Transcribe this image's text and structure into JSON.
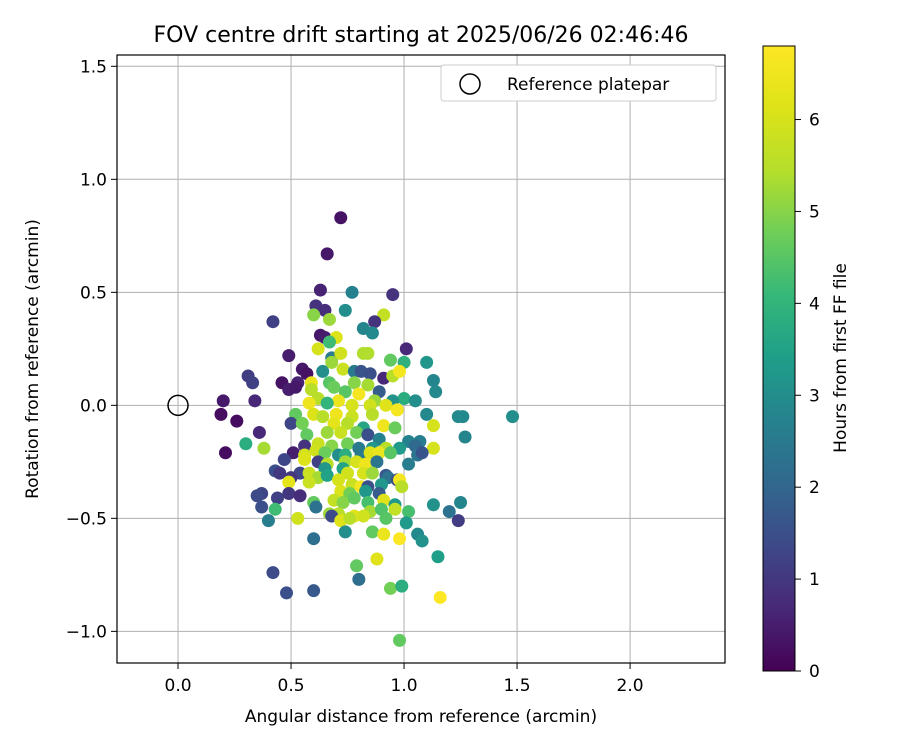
{
  "chart_data": {
    "type": "scatter",
    "title": "FOV centre drift starting at 2025/06/26 02:46:46",
    "xlabel": "Angular distance from reference (arcmin)",
    "ylabel": "Rotation from reference (arcmin)",
    "xlim": [
      -0.27,
      2.42
    ],
    "ylim": [
      -1.14,
      1.55
    ],
    "xticks": [
      0.0,
      0.5,
      1.0,
      1.5,
      2.0
    ],
    "xtick_labels": [
      "0.0",
      "0.5",
      "1.0",
      "1.5",
      "2.0"
    ],
    "yticks": [
      -1.0,
      -0.5,
      0.0,
      0.5,
      1.0,
      1.5
    ],
    "ytick_labels": [
      "−1.0",
      "−0.5",
      "0.0",
      "0.5",
      "1.0",
      "1.5"
    ],
    "grid": true,
    "legend": {
      "position": "top-right",
      "entries": [
        "Reference platepar"
      ]
    },
    "reference_point": {
      "x": 0.0,
      "y": 0.0
    },
    "colorbar": {
      "label": "Hours from first FF file",
      "range": [
        0,
        6.8
      ],
      "ticks": [
        0,
        1,
        2,
        3,
        4,
        5,
        6
      ],
      "tick_labels": [
        "0",
        "1",
        "2",
        "3",
        "4",
        "5",
        "6"
      ],
      "colormap": "viridis"
    },
    "points": [
      [
        0.72,
        0.83,
        0.3
      ],
      [
        0.66,
        0.67,
        0.4
      ],
      [
        0.63,
        0.51,
        0.6
      ],
      [
        0.77,
        0.5,
        2.7
      ],
      [
        0.95,
        0.49,
        0.9
      ],
      [
        0.61,
        0.44,
        0.9
      ],
      [
        0.65,
        0.42,
        0.8
      ],
      [
        0.74,
        0.42,
        3.0
      ],
      [
        0.6,
        0.4,
        5.0
      ],
      [
        0.67,
        0.38,
        5.2
      ],
      [
        0.91,
        0.4,
        5.7
      ],
      [
        0.42,
        0.37,
        1.2
      ],
      [
        0.87,
        0.37,
        0.9
      ],
      [
        0.82,
        0.34,
        2.8
      ],
      [
        0.63,
        0.31,
        0.4
      ],
      [
        0.65,
        0.3,
        0.5
      ],
      [
        0.7,
        0.3,
        6.1
      ],
      [
        0.86,
        0.32,
        2.9
      ],
      [
        0.67,
        0.28,
        4.2
      ],
      [
        0.62,
        0.25,
        6.0
      ],
      [
        1.01,
        0.25,
        0.7
      ],
      [
        0.68,
        0.21,
        2.6
      ],
      [
        0.68,
        0.19,
        5.2
      ],
      [
        0.72,
        0.23,
        5.9
      ],
      [
        0.82,
        0.23,
        5.4
      ],
      [
        0.84,
        0.23,
        5.4
      ],
      [
        0.49,
        0.22,
        0.5
      ],
      [
        0.94,
        0.2,
        4.6
      ],
      [
        1.0,
        0.19,
        3.9
      ],
      [
        1.1,
        0.19,
        3.2
      ],
      [
        0.55,
        0.16,
        0.4
      ],
      [
        0.57,
        0.14,
        0.3
      ],
      [
        0.64,
        0.15,
        3.0
      ],
      [
        0.73,
        0.16,
        5.8
      ],
      [
        0.78,
        0.15,
        2.5
      ],
      [
        0.81,
        0.15,
        1.6
      ],
      [
        0.85,
        0.14,
        1.5
      ],
      [
        0.91,
        0.12,
        0.7
      ],
      [
        0.95,
        0.13,
        5.5
      ],
      [
        0.98,
        0.15,
        6.6
      ],
      [
        1.13,
        0.11,
        2.8
      ],
      [
        0.31,
        0.13,
        1.1
      ],
      [
        0.33,
        0.1,
        1.2
      ],
      [
        0.46,
        0.1,
        0.3
      ],
      [
        0.53,
        0.1,
        0.6
      ],
      [
        0.59,
        0.1,
        6.4
      ],
      [
        0.59,
        0.07,
        5.5
      ],
      [
        0.67,
        0.1,
        4.5
      ],
      [
        0.69,
        0.08,
        4.7
      ],
      [
        0.78,
        0.1,
        5.0
      ],
      [
        0.84,
        0.09,
        5.3
      ],
      [
        0.89,
        0.06,
        1.8
      ],
      [
        1.0,
        0.03,
        3.8
      ],
      [
        1.14,
        0.06,
        2.9
      ],
      [
        0.49,
        0.07,
        0.5
      ],
      [
        0.52,
        0.08,
        0.4
      ],
      [
        0.74,
        0.06,
        4.5
      ],
      [
        0.8,
        0.05,
        6.6
      ],
      [
        0.62,
        0.03,
        5.5
      ],
      [
        0.71,
        0.02,
        6.4
      ],
      [
        0.87,
        0.02,
        5.2
      ],
      [
        0.95,
        0.02,
        3.1
      ],
      [
        1.05,
        0.02,
        3.0
      ],
      [
        0.2,
        0.02,
        0.4
      ],
      [
        0.34,
        0.02,
        0.7
      ],
      [
        0.58,
        0.01,
        6.5
      ],
      [
        0.66,
        0.01,
        4.0
      ],
      [
        0.77,
        0.0,
        6.0
      ],
      [
        0.85,
        0.0,
        5.9
      ],
      [
        0.92,
        0.0,
        6.2
      ],
      [
        0.97,
        -0.02,
        6.6
      ],
      [
        0.19,
        -0.04,
        0.2
      ],
      [
        0.52,
        -0.04,
        4.6
      ],
      [
        0.6,
        -0.04,
        6.1
      ],
      [
        0.64,
        -0.05,
        5.5
      ],
      [
        0.7,
        -0.04,
        6.5
      ],
      [
        0.77,
        -0.05,
        5.8
      ],
      [
        0.86,
        -0.04,
        5.5
      ],
      [
        1.1,
        -0.04,
        2.9
      ],
      [
        1.24,
        -0.05,
        2.9
      ],
      [
        1.26,
        -0.05,
        2.9
      ],
      [
        1.48,
        -0.05,
        3.0
      ],
      [
        0.26,
        -0.07,
        0.2
      ],
      [
        0.5,
        -0.08,
        1.3
      ],
      [
        0.55,
        -0.08,
        4.8
      ],
      [
        0.69,
        -0.08,
        6.3
      ],
      [
        0.75,
        -0.08,
        5.5
      ],
      [
        0.82,
        -0.1,
        3.6
      ],
      [
        0.91,
        -0.09,
        6.5
      ],
      [
        0.96,
        -0.1,
        4.7
      ],
      [
        1.13,
        -0.09,
        6.0
      ],
      [
        0.36,
        -0.12,
        0.7
      ],
      [
        0.57,
        -0.13,
        4.6
      ],
      [
        0.66,
        -0.12,
        5.2
      ],
      [
        0.72,
        -0.12,
        5.8
      ],
      [
        0.79,
        -0.12,
        4.8
      ],
      [
        0.84,
        -0.13,
        1.5
      ],
      [
        0.89,
        -0.15,
        2.7
      ],
      [
        1.02,
        -0.16,
        2.7
      ],
      [
        1.07,
        -0.16,
        2.6
      ],
      [
        1.27,
        -0.14,
        2.8
      ],
      [
        0.3,
        -0.17,
        3.8
      ],
      [
        0.38,
        -0.19,
        5.3
      ],
      [
        0.56,
        -0.18,
        0.9
      ],
      [
        0.62,
        -0.17,
        5.8
      ],
      [
        0.68,
        -0.18,
        5.0
      ],
      [
        0.75,
        -0.17,
        4.8
      ],
      [
        0.8,
        -0.19,
        2.5
      ],
      [
        0.86,
        -0.19,
        3.2
      ],
      [
        0.92,
        -0.19,
        5.5
      ],
      [
        0.98,
        -0.19,
        3.3
      ],
      [
        1.05,
        -0.18,
        2.1
      ],
      [
        1.13,
        -0.19,
        6.0
      ],
      [
        0.21,
        -0.21,
        0.2
      ],
      [
        0.51,
        -0.21,
        0.5
      ],
      [
        0.56,
        -0.22,
        6.0
      ],
      [
        0.61,
        -0.2,
        5.9
      ],
      [
        0.65,
        -0.21,
        4.7
      ],
      [
        0.71,
        -0.22,
        3.0
      ],
      [
        0.74,
        -0.22,
        3.8
      ],
      [
        0.81,
        -0.22,
        2.5
      ],
      [
        0.85,
        -0.21,
        6.2
      ],
      [
        0.89,
        -0.21,
        6.4
      ],
      [
        0.94,
        -0.21,
        4.5
      ],
      [
        1.06,
        -0.22,
        2.4
      ],
      [
        1.08,
        -0.21,
        1.6
      ],
      [
        0.47,
        -0.24,
        1.3
      ],
      [
        0.56,
        -0.24,
        6.1
      ],
      [
        0.62,
        -0.25,
        1.2
      ],
      [
        0.66,
        -0.26,
        5.5
      ],
      [
        0.74,
        -0.25,
        5.3
      ],
      [
        0.79,
        -0.25,
        6.0
      ],
      [
        0.83,
        -0.26,
        6.5
      ],
      [
        0.88,
        -0.25,
        2.4
      ],
      [
        1.02,
        -0.26,
        2.6
      ],
      [
        0.43,
        -0.29,
        1.5
      ],
      [
        0.45,
        -0.3,
        1.0
      ],
      [
        0.54,
        -0.3,
        1.3
      ],
      [
        0.58,
        -0.3,
        5.8
      ],
      [
        0.65,
        -0.28,
        3.2
      ],
      [
        0.73,
        -0.28,
        3.5
      ],
      [
        0.75,
        -0.3,
        5.9
      ],
      [
        0.82,
        -0.3,
        6.0
      ],
      [
        0.86,
        -0.3,
        5.2
      ],
      [
        0.92,
        -0.31,
        1.7
      ],
      [
        0.5,
        -0.32,
        1.0
      ],
      [
        0.62,
        -0.32,
        5.3
      ],
      [
        0.66,
        -0.31,
        3.5
      ],
      [
        0.71,
        -0.33,
        6.0
      ],
      [
        0.93,
        -0.32,
        2.3
      ],
      [
        0.97,
        -0.33,
        1.5
      ],
      [
        0.98,
        -0.33,
        6.6
      ],
      [
        0.49,
        -0.34,
        6.3
      ],
      [
        0.58,
        -0.34,
        5.8
      ],
      [
        0.77,
        -0.35,
        5.8
      ],
      [
        0.81,
        -0.36,
        6.6
      ],
      [
        0.84,
        -0.36,
        1.5
      ],
      [
        0.9,
        -0.35,
        3.2
      ],
      [
        0.37,
        -0.39,
        1.3
      ],
      [
        0.44,
        -0.41,
        1.2
      ],
      [
        0.49,
        -0.39,
        1.0
      ],
      [
        0.54,
        -0.4,
        0.8
      ],
      [
        0.72,
        -0.38,
        6.1
      ],
      [
        0.76,
        -0.39,
        4.8
      ],
      [
        0.83,
        -0.38,
        3.2
      ],
      [
        0.89,
        -0.39,
        1.8
      ],
      [
        0.99,
        -0.36,
        5.5
      ],
      [
        0.35,
        -0.4,
        1.4
      ],
      [
        0.6,
        -0.43,
        4.6
      ],
      [
        0.69,
        -0.42,
        5.7
      ],
      [
        0.73,
        -0.43,
        5.0
      ],
      [
        0.78,
        -0.41,
        4.6
      ],
      [
        0.84,
        -0.43,
        4.3
      ],
      [
        0.91,
        -0.42,
        6.2
      ],
      [
        0.96,
        -0.44,
        3.3
      ],
      [
        1.13,
        -0.44,
        3.1
      ],
      [
        1.25,
        -0.43,
        2.8
      ],
      [
        0.37,
        -0.45,
        1.5
      ],
      [
        0.43,
        -0.46,
        4.2
      ],
      [
        0.61,
        -0.45,
        2.3
      ],
      [
        0.67,
        -0.48,
        5.2
      ],
      [
        0.71,
        -0.48,
        5.5
      ],
      [
        0.78,
        -0.49,
        6.2
      ],
      [
        0.85,
        -0.47,
        5.3
      ],
      [
        0.9,
        -0.46,
        4.4
      ],
      [
        0.96,
        -0.46,
        5.7
      ],
      [
        1.02,
        -0.47,
        4.3
      ],
      [
        1.2,
        -0.47,
        2.3
      ],
      [
        0.4,
        -0.51,
        2.6
      ],
      [
        0.53,
        -0.5,
        5.9
      ],
      [
        0.68,
        -0.49,
        1.4
      ],
      [
        0.72,
        -0.51,
        6.2
      ],
      [
        0.76,
        -0.5,
        5.5
      ],
      [
        0.82,
        -0.49,
        5.9
      ],
      [
        0.92,
        -0.5,
        4.5
      ],
      [
        1.01,
        -0.52,
        3.3
      ],
      [
        1.24,
        -0.51,
        1.1
      ],
      [
        0.74,
        -0.56,
        3.0
      ],
      [
        0.86,
        -0.56,
        4.6
      ],
      [
        0.91,
        -0.57,
        6.4
      ],
      [
        0.98,
        -0.59,
        6.8
      ],
      [
        1.06,
        -0.57,
        2.9
      ],
      [
        1.08,
        -0.6,
        3.1
      ],
      [
        0.6,
        -0.59,
        2.2
      ],
      [
        1.15,
        -0.67,
        3.4
      ],
      [
        0.88,
        -0.68,
        6.2
      ],
      [
        0.79,
        -0.71,
        4.6
      ],
      [
        0.42,
        -0.74,
        1.4
      ],
      [
        0.8,
        -0.77,
        2.2
      ],
      [
        0.94,
        -0.81,
        4.8
      ],
      [
        0.99,
        -0.8,
        3.8
      ],
      [
        0.48,
        -0.83,
        1.5
      ],
      [
        0.6,
        -0.82,
        1.7
      ],
      [
        1.16,
        -0.85,
        6.8
      ],
      [
        0.98,
        -1.04,
        4.6
      ]
    ]
  }
}
